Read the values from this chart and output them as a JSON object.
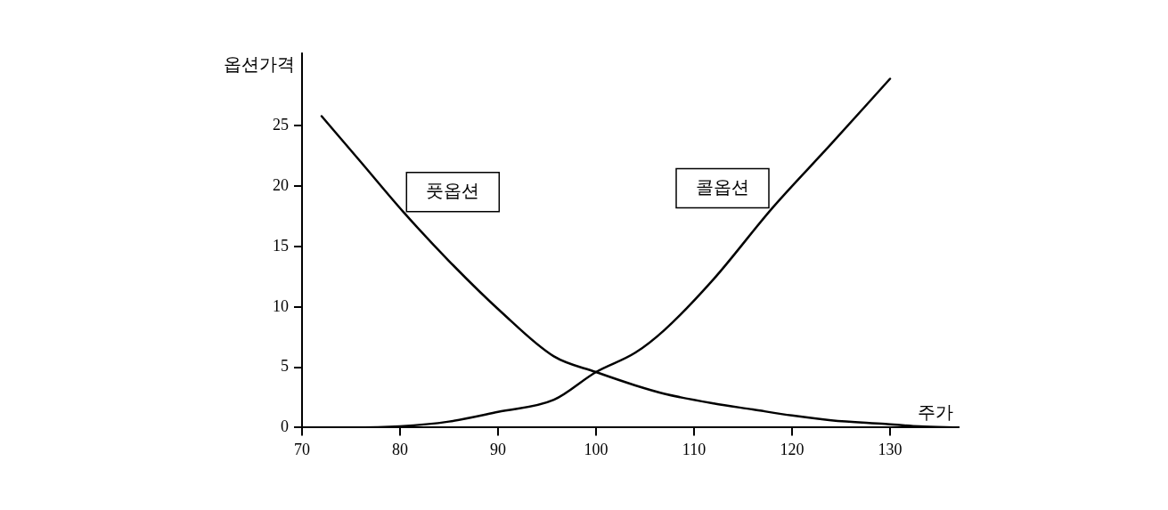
{
  "chart_data": {
    "type": "line",
    "xlabel": "주가",
    "ylabel": "옵션가격",
    "xlim": [
      70,
      137
    ],
    "ylim": [
      0,
      31
    ],
    "xticks": [
      70,
      80,
      90,
      100,
      110,
      120,
      130
    ],
    "yticks": [
      0,
      5,
      10,
      15,
      20,
      25
    ],
    "grid": false,
    "legend": false,
    "marker": "none",
    "line_style": "solid",
    "series": [
      {
        "name": "풋옵션",
        "color": "#000000",
        "x": [
          72,
          76,
          80.3,
          85,
          90.3,
          95.7,
          100,
          104,
          107,
          112,
          116,
          120,
          124,
          129.5,
          133,
          137
        ],
        "values": [
          25.8,
          22,
          17.9,
          13.8,
          9.6,
          5.9,
          4.6,
          3.5,
          2.8,
          2,
          1.5,
          1,
          0.6,
          0.3,
          0.1,
          0
        ]
      },
      {
        "name": "콜옵션",
        "color": "#000000",
        "x": [
          70,
          75,
          80,
          85,
          90,
          95.7,
          100,
          104,
          107,
          112,
          118,
          124,
          130
        ],
        "values": [
          0,
          0,
          0.1,
          0.5,
          1.3,
          2.3,
          4.6,
          6.2,
          8.1,
          12.3,
          18.2,
          23.5,
          28.9
        ]
      }
    ]
  }
}
